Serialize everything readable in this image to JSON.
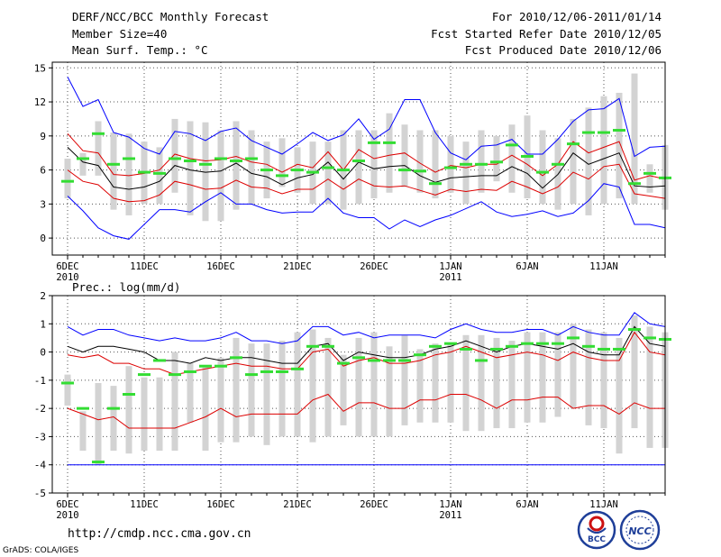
{
  "header": {
    "title": "DERF/NCC/BCC Monthly Forecast",
    "member_size": "Member Size=40",
    "variable": "Mean Surf. Temp.: °C",
    "period": "For 2010/12/06-2011/01/14",
    "fcst_start": "Fcst Started Refer Date 2010/12/05",
    "fcst_produced": "Fcst Produced Date 2010/12/06"
  },
  "footer": {
    "url": "http://cmdp.ncc.cma.gov.cn",
    "grads": "GrADS: COLA/IGES",
    "logo_bcc": "BCC",
    "logo_ncc": "NCC"
  },
  "colors": {
    "box": "#d3d3d3",
    "ensemble_mean": "#000000",
    "range": "#0000ff",
    "spread": "#dd0000",
    "marker": "#33dd33",
    "grid": "#555555"
  },
  "chart_data": [
    {
      "type": "line",
      "title": "Mean Surf. Temp.: °C",
      "x": [
        1,
        2,
        3,
        4,
        5,
        6,
        7,
        8,
        9,
        10,
        11,
        12,
        13,
        14,
        15,
        16,
        17,
        18,
        19,
        20,
        21,
        22,
        23,
        24,
        25,
        26,
        27,
        28,
        29,
        30,
        31,
        32,
        33,
        34,
        35,
        36,
        37,
        38,
        39,
        40
      ],
      "xticks": [
        1,
        6,
        11,
        16,
        21,
        26,
        31,
        36
      ],
      "xtick_labels": [
        "6DEC",
        "11DEC",
        "16DEC",
        "21DEC",
        "26DEC",
        "1JAN",
        "6JAN",
        "11JAN"
      ],
      "xtick_sublabels": [
        "2010",
        "",
        "",
        "",
        "",
        "2011",
        "",
        ""
      ],
      "xlim": [
        0,
        40
      ],
      "ylim": [
        -1.5,
        15.5
      ],
      "yticks": [
        0,
        3,
        6,
        9,
        12,
        15
      ],
      "series": [
        {
          "name": "box_low",
          "values": [
            3.5,
            5.5,
            5.5,
            2.5,
            2,
            3,
            3,
            4,
            2,
            1.5,
            1.5,
            2.5,
            3,
            3.5,
            4.5,
            4,
            3,
            3,
            2.5,
            3,
            3.5,
            4,
            4.5,
            4,
            3.5,
            4,
            3,
            4,
            5,
            4,
            3.5,
            3,
            2.5,
            3,
            2,
            3,
            3.5,
            3,
            4,
            2.5
          ]
        },
        {
          "name": "box_high",
          "values": [
            7,
            7.5,
            10.3,
            9.3,
            9.2,
            8.5,
            8,
            10.5,
            10.3,
            10.2,
            9.5,
            10.3,
            9.5,
            8.5,
            8.8,
            8,
            8.5,
            8.5,
            9.5,
            9.5,
            9.5,
            11,
            10,
            9.5,
            9.5,
            9,
            8.5,
            9.5,
            9,
            10,
            10.8,
            9.5,
            8.8,
            10.5,
            11.5,
            12.5,
            12.8,
            14.5,
            6.5,
            8.2
          ]
        },
        {
          "name": "marker",
          "values": [
            5,
            7,
            9.2,
            6.5,
            7,
            5.8,
            5.7,
            7,
            6.8,
            6.5,
            7,
            6.8,
            7,
            6,
            5.5,
            6,
            5.8,
            6.2,
            6,
            6.8,
            8.4,
            8.4,
            6,
            5.9,
            4.8,
            6.2,
            6.5,
            6.5,
            6.7,
            8.2,
            7.2,
            5.8,
            6.5,
            8.3,
            9.3,
            9.3,
            9.5,
            4.8,
            5.7,
            5.3
          ]
        },
        {
          "name": "upper",
          "values": [
            9.2,
            7.7,
            7.5,
            5.6,
            5.5,
            5.7,
            6.0,
            7.4,
            7.0,
            6.8,
            6.9,
            7.2,
            6.7,
            6.5,
            5.8,
            6.5,
            6.2,
            7.6,
            6.0,
            7.8,
            7.0,
            7.3,
            7.5,
            6.6,
            5.8,
            6.4,
            6.2,
            6.5,
            6.5,
            7.3,
            6.5,
            5.5,
            6.5,
            8.5,
            7.5,
            8.0,
            8.5,
            5.1,
            5.5,
            5.2
          ]
        },
        {
          "name": "mean",
          "values": [
            8.0,
            6.7,
            6.4,
            4.5,
            4.3,
            4.5,
            5.0,
            6.4,
            6.0,
            5.8,
            5.9,
            6.6,
            5.7,
            5.4,
            4.7,
            5.3,
            5.6,
            6.7,
            5.2,
            6.7,
            6.1,
            6.3,
            6.4,
            5.5,
            4.9,
            5.3,
            5.4,
            5.5,
            5.5,
            6.3,
            5.7,
            4.4,
            5.6,
            7.5,
            6.5,
            7.0,
            7.5,
            4.6,
            4.5,
            4.6
          ]
        },
        {
          "name": "lower",
          "values": [
            6.0,
            5.0,
            4.7,
            3.5,
            3.2,
            3.3,
            3.8,
            5.0,
            4.7,
            4.3,
            4.4,
            5.1,
            4.5,
            4.4,
            3.9,
            4.3,
            4.3,
            5.2,
            4.3,
            5.2,
            4.6,
            4.5,
            4.6,
            4.2,
            3.8,
            4.3,
            4.1,
            4.3,
            4.2,
            5.0,
            4.5,
            3.9,
            4.5,
            5.8,
            5.2,
            6.3,
            6.5,
            3.9,
            3.7,
            3.5
          ]
        },
        {
          "name": "max",
          "values": [
            14.2,
            11.6,
            12.2,
            9.3,
            8.9,
            7.9,
            7.4,
            9.4,
            9.2,
            8.6,
            9.4,
            9.7,
            8.6,
            8.0,
            7.4,
            8.3,
            9.3,
            8.6,
            9.1,
            10.5,
            8.7,
            9.6,
            12.2,
            12.2,
            9.3,
            7.5,
            6.9,
            8.1,
            8.2,
            8.7,
            7.4,
            7.4,
            8.7,
            10.3,
            11.3,
            11.4,
            12.3,
            7.2,
            8.0,
            8.1
          ]
        },
        {
          "name": "min",
          "values": [
            3.7,
            2.4,
            0.9,
            0.2,
            -0.1,
            1.2,
            2.5,
            2.5,
            2.3,
            3.2,
            4.0,
            3.0,
            3.0,
            2.5,
            2.2,
            2.3,
            2.3,
            3.5,
            2.2,
            1.8,
            1.8,
            0.8,
            1.6,
            1.0,
            1.6,
            2.0,
            2.6,
            3.2,
            2.3,
            1.9,
            2.1,
            2.4,
            1.9,
            2.2,
            3.3,
            4.8,
            4.5,
            1.2,
            1.2,
            0.9
          ]
        }
      ]
    },
    {
      "type": "line",
      "title": "Prec.: log(mm/d)",
      "x": [
        1,
        2,
        3,
        4,
        5,
        6,
        7,
        8,
        9,
        10,
        11,
        12,
        13,
        14,
        15,
        16,
        17,
        18,
        19,
        20,
        21,
        22,
        23,
        24,
        25,
        26,
        27,
        28,
        29,
        30,
        31,
        32,
        33,
        34,
        35,
        36,
        37,
        38,
        39,
        40
      ],
      "xticks": [
        1,
        6,
        11,
        16,
        21,
        26,
        31,
        36
      ],
      "xtick_labels": [
        "6DEC",
        "11DEC",
        "16DEC",
        "21DEC",
        "26DEC",
        "1JAN",
        "6JAN",
        "11JAN"
      ],
      "xtick_sublabels": [
        "2010",
        "",
        "",
        "",
        "",
        "2011",
        "",
        ""
      ],
      "xlim": [
        0,
        40
      ],
      "ylim": [
        -5,
        2
      ],
      "yticks": [
        -5,
        -4,
        -3,
        -2,
        -1,
        0,
        1,
        2
      ],
      "series": [
        {
          "name": "box_low",
          "values": [
            -1.9,
            -3.5,
            -4,
            -3.5,
            -3.6,
            -3.5,
            -3.5,
            -3.5,
            -2.5,
            -3.5,
            -3.2,
            -3.2,
            -3,
            -3.3,
            -3,
            -3,
            -3.2,
            -3,
            -2.6,
            -3,
            -3,
            -3,
            -2.6,
            -2.5,
            -2.5,
            -2.5,
            -2.8,
            -2.8,
            -2.7,
            -2.7,
            -2.5,
            -2.5,
            -2.3,
            -2,
            -2.6,
            -2.7,
            -3.6,
            -2.7,
            -3.4,
            -3.4
          ]
        },
        {
          "name": "box_high",
          "values": [
            -0.8,
            -2.1,
            -1.1,
            -1.2,
            -0.5,
            -0.9,
            -0.9,
            0,
            -0.4,
            -0.5,
            -0.2,
            0.5,
            0.3,
            0.3,
            0.4,
            0.7,
            0.8,
            0.5,
            -0.1,
            0.5,
            0.7,
            0.2,
            0.6,
            0.1,
            0.3,
            0.3,
            0.6,
            0.6,
            0.5,
            0.4,
            0.7,
            0.7,
            0.7,
            1,
            0.8,
            0.7,
            0.5,
            1.3,
            0.9,
            0.7
          ]
        },
        {
          "name": "marker",
          "values": [
            -1.1,
            -2,
            -3.9,
            -2,
            -1.5,
            -0.8,
            -0.3,
            -0.8,
            -0.7,
            -0.5,
            -0.5,
            -0.2,
            -0.8,
            -0.7,
            -0.7,
            -0.6,
            0.2,
            0.2,
            -0.4,
            -0.2,
            -0.3,
            -0.3,
            -0.3,
            -0.1,
            0.2,
            0.3,
            0.1,
            -0.3,
            0.1,
            0.2,
            0.3,
            0.3,
            0.3,
            0.5,
            0.2,
            0.1,
            0.1,
            0.8,
            0.5,
            0.45
          ]
        },
        {
          "name": "max",
          "values": [
            0.9,
            0.6,
            0.8,
            0.8,
            0.6,
            0.5,
            0.4,
            0.5,
            0.4,
            0.4,
            0.5,
            0.7,
            0.4,
            0.4,
            0.3,
            0.4,
            0.9,
            0.9,
            0.6,
            0.7,
            0.5,
            0.6,
            0.6,
            0.6,
            0.5,
            0.8,
            1.0,
            0.8,
            0.7,
            0.7,
            0.8,
            0.8,
            0.6,
            0.9,
            0.7,
            0.6,
            0.6,
            1.4,
            1.0,
            0.9
          ]
        },
        {
          "name": "mean",
          "values": [
            0.2,
            0.0,
            0.2,
            0.2,
            0.1,
            0.0,
            -0.3,
            -0.3,
            -0.4,
            -0.2,
            -0.3,
            -0.2,
            -0.2,
            -0.3,
            -0.4,
            -0.4,
            0.2,
            0.3,
            -0.3,
            0.0,
            -0.1,
            -0.2,
            -0.2,
            -0.1,
            0.1,
            0.2,
            0.4,
            0.2,
            0.0,
            0.2,
            0.3,
            0.2,
            0.1,
            0.3,
            0.0,
            -0.1,
            -0.1,
            0.9,
            0.3,
            0.2
          ]
        },
        {
          "name": "upper",
          "values": [
            -0.1,
            -0.2,
            -0.1,
            -0.4,
            -0.4,
            -0.6,
            -0.6,
            -0.8,
            -0.7,
            -0.6,
            -0.5,
            -0.4,
            -0.5,
            -0.5,
            -0.6,
            -0.6,
            0.0,
            0.1,
            -0.5,
            -0.3,
            -0.2,
            -0.4,
            -0.4,
            -0.3,
            -0.1,
            0.0,
            0.2,
            0.0,
            -0.2,
            -0.1,
            0.0,
            -0.1,
            -0.3,
            0.0,
            -0.2,
            -0.3,
            -0.3,
            0.7,
            0.0,
            -0.1
          ]
        },
        {
          "name": "lower",
          "values": [
            -2.0,
            -2.2,
            -2.4,
            -2.3,
            -2.7,
            -2.7,
            -2.7,
            -2.7,
            -2.5,
            -2.3,
            -2.0,
            -2.3,
            -2.2,
            -2.2,
            -2.2,
            -2.2,
            -1.7,
            -1.5,
            -2.1,
            -1.8,
            -1.8,
            -2.0,
            -2.0,
            -1.7,
            -1.7,
            -1.5,
            -1.5,
            -1.7,
            -2.0,
            -1.7,
            -1.7,
            -1.6,
            -1.6,
            -2.0,
            -1.9,
            -1.9,
            -2.2,
            -1.8,
            -2.0,
            -2.0
          ]
        },
        {
          "name": "min",
          "values": [
            -4,
            -4,
            -4,
            -4,
            -4,
            -4,
            -4,
            -4,
            -4,
            -4,
            -4,
            -4,
            -4,
            -4,
            -4,
            -4,
            -4,
            -4,
            -4,
            -4,
            -4,
            -4,
            -4,
            -4,
            -4,
            -4,
            -4,
            -4,
            -4,
            -4,
            -4,
            -4,
            -4,
            -4,
            -4,
            -4,
            -4,
            -4,
            -4,
            -4
          ]
        }
      ]
    }
  ]
}
